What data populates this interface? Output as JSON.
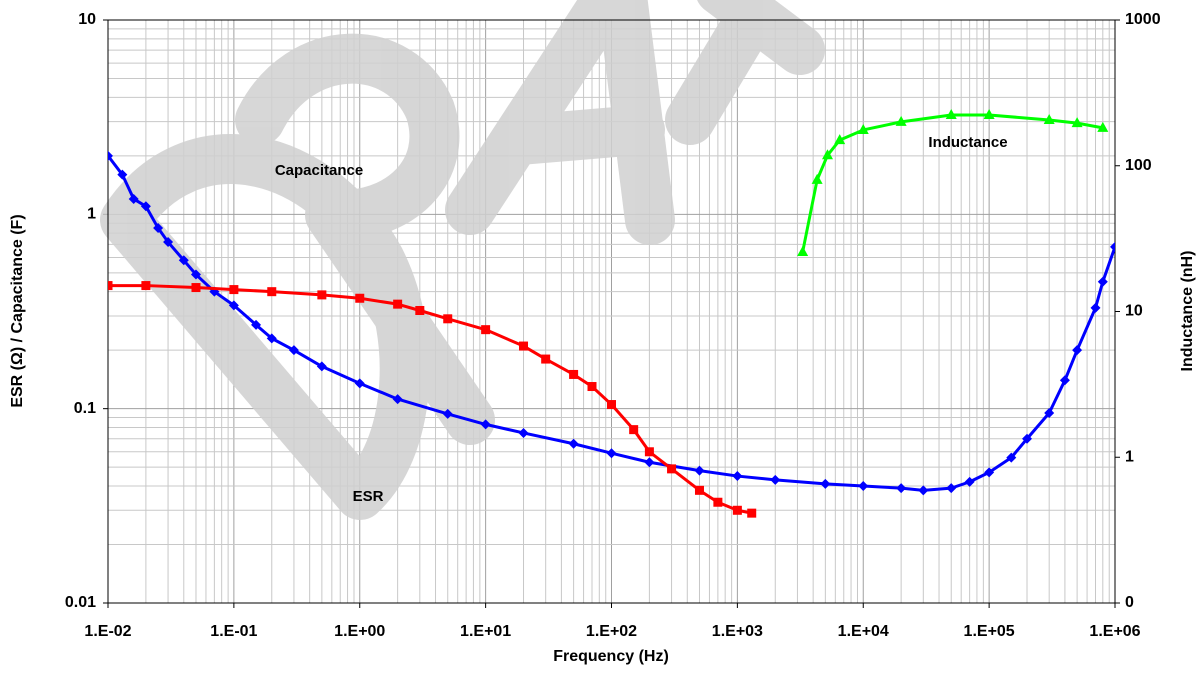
{
  "chart_data": {
    "type": "line",
    "x_label": "Frequency (Hz)",
    "y_label": "ESR (Ω) / Capacitance (F)",
    "y2_label": "Inductance (nH)",
    "xscale": "log",
    "yscale": "log",
    "y2scale": "log",
    "grid": true,
    "minor_grid": true,
    "xlim": [
      0.01,
      1000000
    ],
    "xticks": [
      {
        "value": 0.01,
        "label": "1.E-02"
      },
      {
        "value": 0.1,
        "label": "1.E-01"
      },
      {
        "value": 1,
        "label": "1.E+00"
      },
      {
        "value": 10,
        "label": "1.E+01"
      },
      {
        "value": 100,
        "label": "1.E+02"
      },
      {
        "value": 1000,
        "label": "1.E+03"
      },
      {
        "value": 10000,
        "label": "1.E+04"
      },
      {
        "value": 100000,
        "label": "1.E+05"
      },
      {
        "value": 1000000,
        "label": "1.E+06"
      }
    ],
    "ylim": [
      0.01,
      10
    ],
    "yticks": [
      0.01,
      0.1,
      1,
      10
    ],
    "y2lim": [
      0.1,
      1000
    ],
    "y2ticks": [
      {
        "value": 0.1,
        "label": "0"
      },
      1,
      10,
      100,
      1000
    ],
    "series": [
      {
        "name": "ESR",
        "color": "#0000ff",
        "marker": "diamond",
        "x": [
          0.01,
          0.013,
          0.016,
          0.02,
          0.025,
          0.03,
          0.04,
          0.05,
          0.07,
          0.1,
          0.15,
          0.2,
          0.3,
          0.5,
          1,
          2,
          5,
          10,
          20,
          50,
          100,
          200,
          500,
          1000,
          2000,
          5000,
          10000,
          20000,
          30000,
          50000,
          70000,
          100000,
          150000,
          200000,
          300000,
          400000,
          500000,
          700000,
          800000,
          1000000
        ],
        "values": [
          2.0,
          1.6,
          1.2,
          1.1,
          0.85,
          0.72,
          0.58,
          0.49,
          0.4,
          0.34,
          0.27,
          0.23,
          0.2,
          0.165,
          0.135,
          0.112,
          0.094,
          0.083,
          0.075,
          0.066,
          0.059,
          0.053,
          0.048,
          0.045,
          0.043,
          0.041,
          0.04,
          0.039,
          0.038,
          0.039,
          0.042,
          0.047,
          0.056,
          0.07,
          0.095,
          0.14,
          0.2,
          0.33,
          0.45,
          0.68
        ]
      },
      {
        "name": "Capacitance",
        "color": "#ff0000",
        "marker": "square",
        "x": [
          0.01,
          0.02,
          0.05,
          0.1,
          0.2,
          0.5,
          1,
          2,
          3,
          5,
          10,
          20,
          30,
          50,
          70,
          100,
          150,
          200,
          300,
          500,
          700,
          1000,
          1300
        ],
        "values": [
          0.43,
          0.43,
          0.42,
          0.41,
          0.4,
          0.385,
          0.37,
          0.345,
          0.32,
          0.29,
          0.255,
          0.21,
          0.18,
          0.15,
          0.13,
          0.105,
          0.078,
          0.06,
          0.049,
          0.038,
          0.033,
          0.03,
          0.029
        ]
      },
      {
        "name": "Inductance",
        "color": "#00ff00",
        "marker": "triangle",
        "axis": "y2",
        "x": [
          3300,
          4300,
          5200,
          6500,
          10000,
          20000,
          50000,
          100000,
          300000,
          500000,
          800000
        ],
        "values": [
          25.6,
          80,
          118,
          150,
          176,
          200,
          223,
          223,
          206,
          196,
          182
        ]
      }
    ]
  }
}
